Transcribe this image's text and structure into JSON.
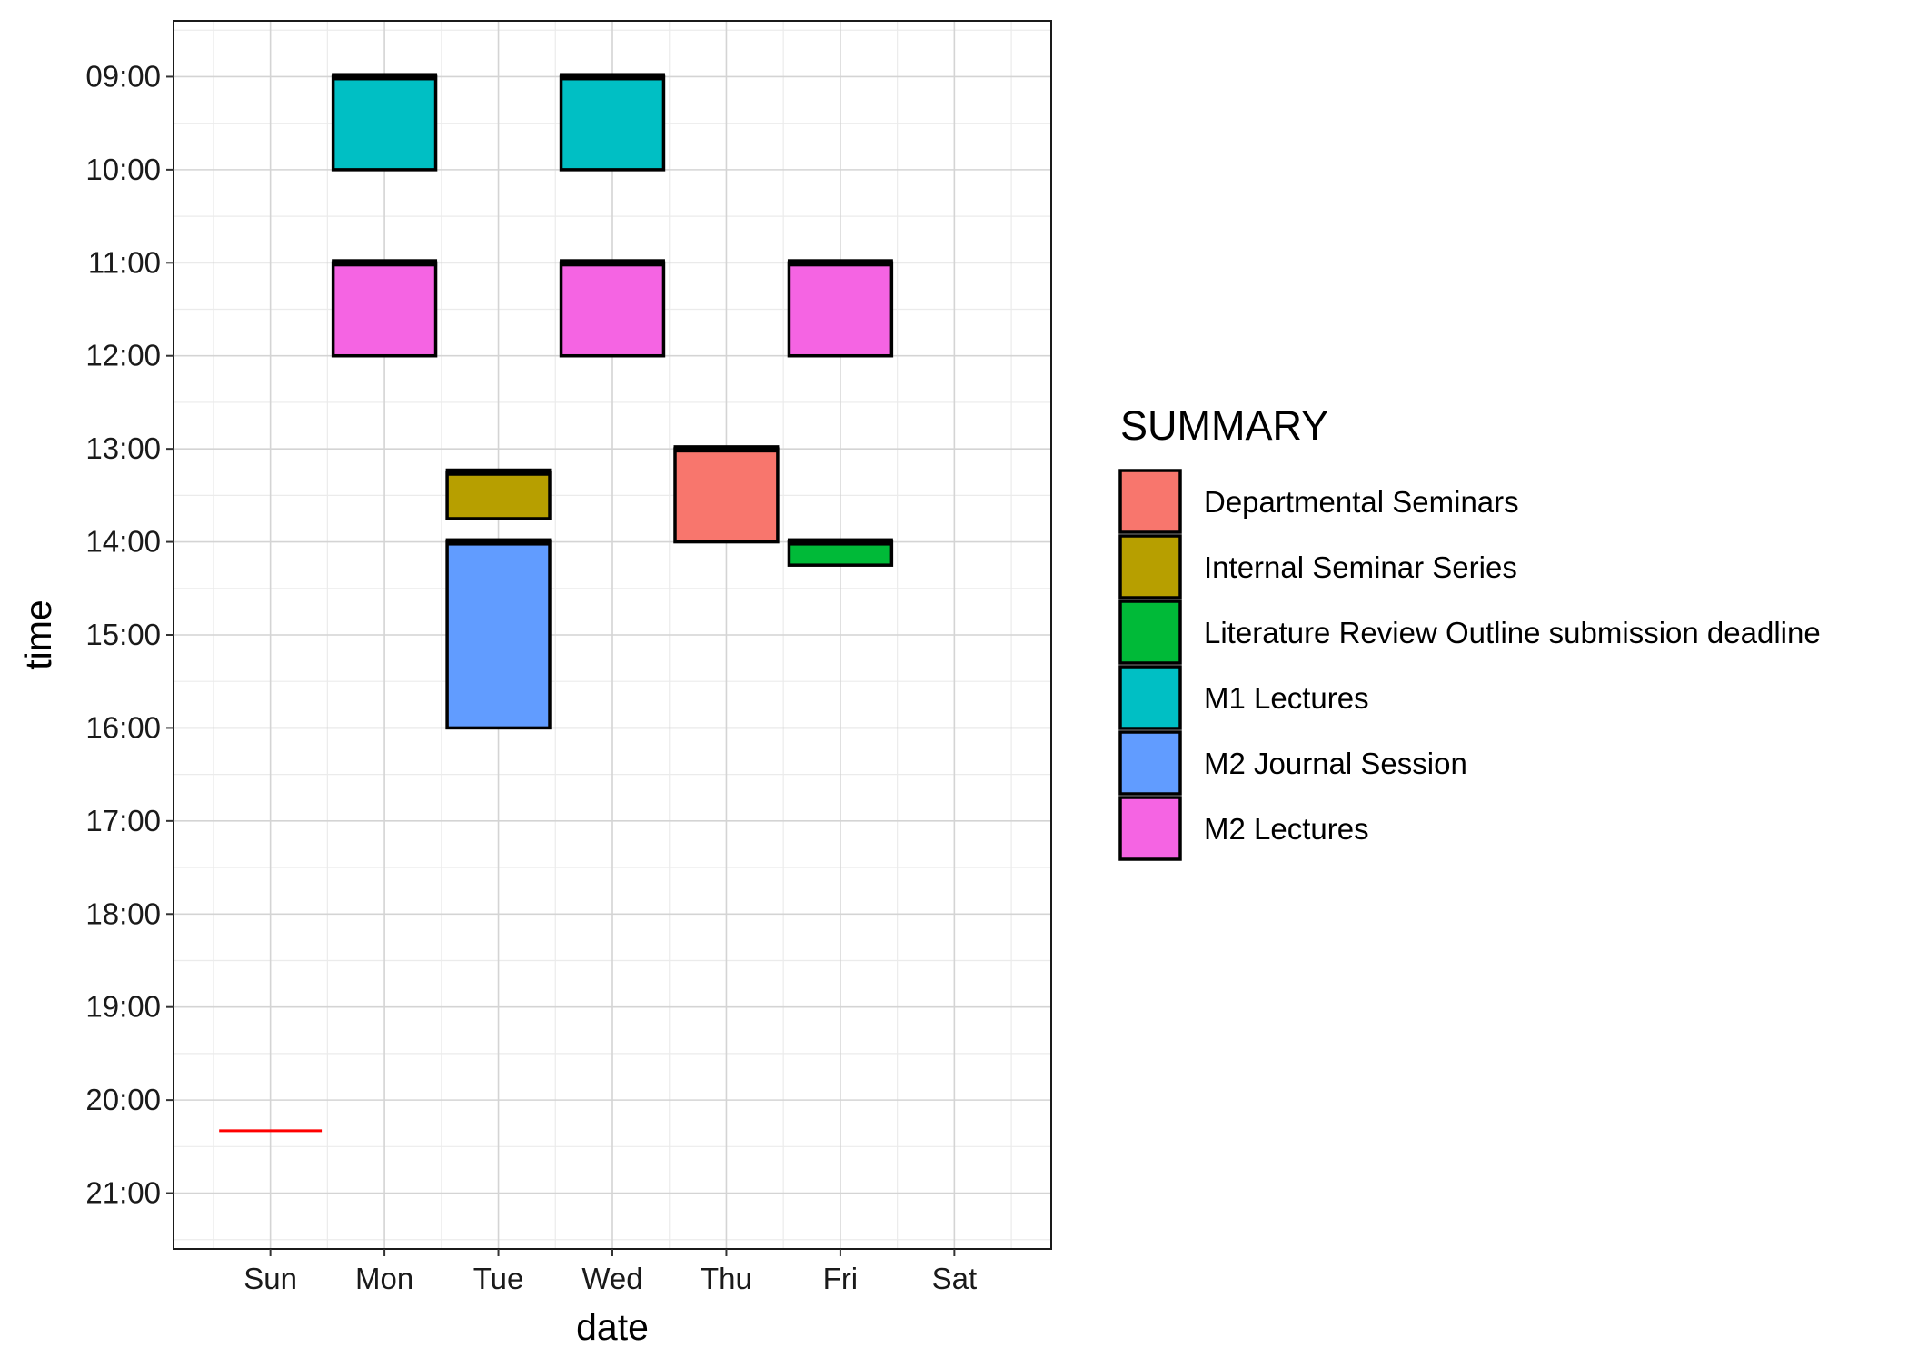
{
  "chart_data": {
    "type": "calendar",
    "xlabel": "date",
    "ylabel": "time",
    "categories": [
      "Sun",
      "Mon",
      "Tue",
      "Wed",
      "Thu",
      "Fri",
      "Sat"
    ],
    "y_ticks": [
      "09:00",
      "10:00",
      "11:00",
      "12:00",
      "13:00",
      "14:00",
      "15:00",
      "16:00",
      "17:00",
      "18:00",
      "19:00",
      "20:00",
      "21:00"
    ],
    "y_range_hours": [
      8.4,
      21.6
    ],
    "y_reversed": true,
    "grid": true,
    "legend": {
      "title": "SUMMARY",
      "placement": "right",
      "entries": [
        {
          "name": "Departmental Seminars",
          "color": "#F8766D"
        },
        {
          "name": "Internal Seminar Series",
          "color": "#B79F00"
        },
        {
          "name": "Literature Review Outline submission deadline",
          "color": "#00BA38"
        },
        {
          "name": "M1 Lectures",
          "color": "#00BFC4"
        },
        {
          "name": "M2 Journal Session",
          "color": "#619CFF"
        },
        {
          "name": "M2 Lectures",
          "color": "#F564E3"
        }
      ]
    },
    "events": [
      {
        "day": "Mon",
        "start": 9.0,
        "end": 10.0,
        "summary": "M1 Lectures"
      },
      {
        "day": "Wed",
        "start": 9.0,
        "end": 10.0,
        "summary": "M1 Lectures"
      },
      {
        "day": "Mon",
        "start": 11.0,
        "end": 12.0,
        "summary": "M2 Lectures"
      },
      {
        "day": "Wed",
        "start": 11.0,
        "end": 12.0,
        "summary": "M2 Lectures"
      },
      {
        "day": "Fri",
        "start": 11.0,
        "end": 12.0,
        "summary": "M2 Lectures"
      },
      {
        "day": "Tue",
        "start": 13.25,
        "end": 13.75,
        "summary": "Internal Seminar Series"
      },
      {
        "day": "Tue",
        "start": 14.0,
        "end": 16.0,
        "summary": "M2 Journal Session"
      },
      {
        "day": "Thu",
        "start": 13.0,
        "end": 14.0,
        "summary": "Departmental Seminars"
      },
      {
        "day": "Fri",
        "start": 14.0,
        "end": 14.25,
        "summary": "Literature Review Outline submission deadline"
      }
    ],
    "current_time_marker": {
      "day": "Sun",
      "time": 20.33,
      "color": "#FF0000"
    }
  }
}
